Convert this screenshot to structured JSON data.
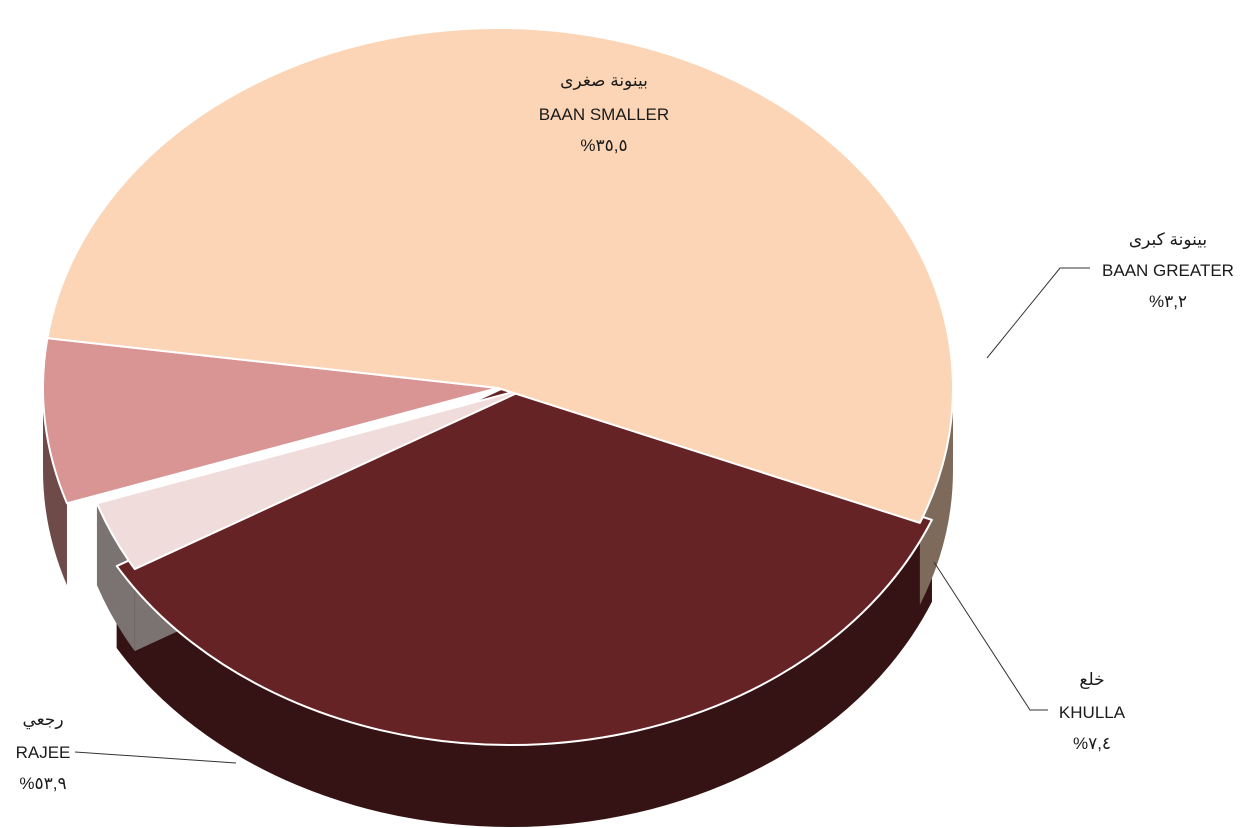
{
  "chart_data": {
    "type": "pie",
    "style": "3d-exploded",
    "title": "",
    "slices": [
      {
        "arabic": "بينونة صغرى",
        "english": "BAAN SMALLER",
        "percent_label": "%٣٥,٥",
        "value": 35.5,
        "color": "#652325",
        "side_color": "#351214"
      },
      {
        "arabic": "بينونة كبرى",
        "english": "BAAN GREATER",
        "percent_label": "%٣,٢",
        "value": 3.2,
        "color": "#f0dcda",
        "side_color": "#7b7272"
      },
      {
        "arabic": "خلع",
        "english": "KHULLA",
        "percent_label": "%٧,٤",
        "value": 7.4,
        "color": "#d99494",
        "side_color": "#6e4a48"
      },
      {
        "arabic": "رجعي",
        "english": "RAJEE",
        "percent_label": "%٥٣,٩",
        "value": 53.9,
        "color": "#fbd5b5",
        "side_color": "#7d6a5a"
      }
    ]
  }
}
